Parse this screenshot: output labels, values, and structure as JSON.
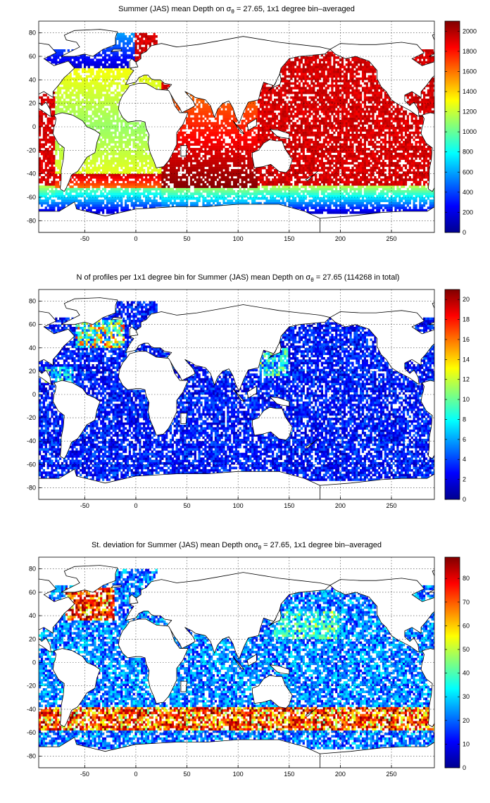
{
  "chart_data": [
    {
      "type": "heatmap",
      "title_prefix": "Summer (JAS) mean Depth on ",
      "title_sigma": "σ",
      "title_sub": "θ",
      "title_suffix": " = 27.65, 1x1 degree bin–averaged",
      "xlim": [
        -95,
        292
      ],
      "ylim": [
        -90,
        90
      ],
      "x_ticks": [
        -50,
        0,
        50,
        100,
        150,
        200,
        250
      ],
      "y_ticks": [
        80,
        60,
        40,
        20,
        0,
        -20,
        -40,
        -60,
        -80
      ],
      "grid": true,
      "colormap": "jet",
      "colorbar_range": [
        0,
        2100
      ],
      "colorbar_ticks": [
        2000,
        1800,
        1600,
        1400,
        1200,
        1000,
        800,
        600,
        400,
        200,
        0
      ]
    },
    {
      "type": "heatmap",
      "title_prefix": "N of profiles per 1x1 degree bin for Summer (JAS) mean Depth on ",
      "title_sigma": "σ",
      "title_sub": "θ",
      "title_suffix": " = 27.65 (114268 in total)",
      "xlim": [
        -95,
        292
      ],
      "ylim": [
        -90,
        90
      ],
      "x_ticks": [
        -50,
        0,
        50,
        100,
        150,
        200,
        250
      ],
      "y_ticks": [
        80,
        60,
        40,
        20,
        0,
        -20,
        -40,
        -60,
        -80
      ],
      "grid": true,
      "colormap": "jet",
      "colorbar_range": [
        0,
        21
      ],
      "colorbar_ticks": [
        20,
        18,
        16,
        14,
        12,
        10,
        8,
        6,
        4,
        2,
        0
      ]
    },
    {
      "type": "heatmap",
      "title_prefix": "St. deviation for Summer (JAS) mean Depth on",
      "title_sigma": "σ",
      "title_sub": "θ",
      "title_suffix": " = 27.65, 1x1 degree bin–averaged",
      "xlim": [
        -95,
        292
      ],
      "ylim": [
        -90,
        90
      ],
      "x_ticks": [
        -50,
        0,
        50,
        100,
        150,
        200,
        250
      ],
      "y_ticks": [
        80,
        60,
        40,
        20,
        0,
        -20,
        -40,
        -60,
        -80
      ],
      "grid": true,
      "colormap": "jet",
      "colorbar_range": [
        0,
        89
      ],
      "colorbar_ticks": [
        80,
        70,
        60,
        50,
        40,
        30,
        20,
        10,
        0
      ]
    }
  ]
}
